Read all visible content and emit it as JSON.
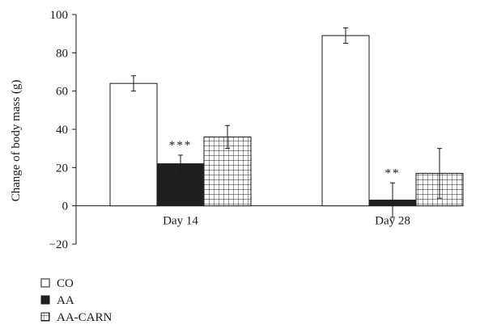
{
  "chart_data": {
    "type": "bar",
    "title": "",
    "xlabel": "",
    "ylabel": "Change of body mass (g)",
    "ylim": [
      -20,
      100
    ],
    "yticks": [
      -20,
      0,
      20,
      40,
      60,
      80,
      100
    ],
    "ytick_labels": [
      "−20",
      "0",
      "20",
      "40",
      "60",
      "80",
      "100"
    ],
    "categories": [
      "Day 14",
      "Day 28"
    ],
    "grid": false,
    "legend_position": "bottom-left",
    "series": [
      {
        "name": "CO",
        "values": [
          64,
          89
        ],
        "errors": [
          4,
          4
        ],
        "fill": "#ffffff",
        "pattern": "none"
      },
      {
        "name": "AA",
        "values": [
          22,
          3
        ],
        "errors": [
          4.5,
          9
        ],
        "fill": "#1f1f1f",
        "pattern": "solid"
      },
      {
        "name": "AA-CARN",
        "values": [
          36,
          17
        ],
        "errors": [
          6,
          13
        ],
        "fill": "#ffffff",
        "pattern": "grid"
      }
    ],
    "annotations": [
      {
        "category": "Day 14",
        "series": "AA",
        "text": "***"
      },
      {
        "category": "Day 28",
        "series": "AA",
        "text": "**"
      }
    ]
  }
}
